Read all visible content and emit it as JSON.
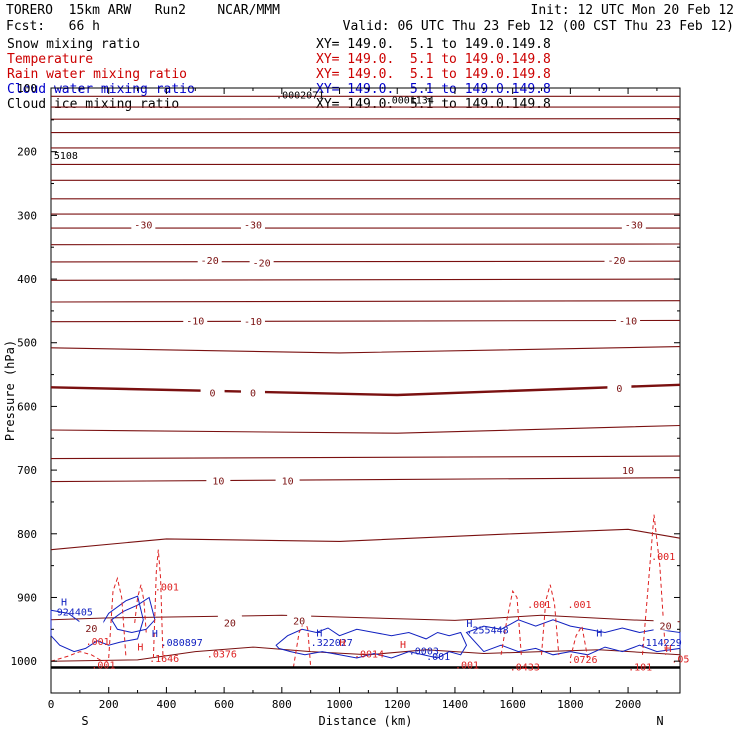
{
  "header": {
    "model": "TORERO  15km ARW   Run2    NCAR/MMM",
    "init": "Init: 12 UTC Mon 20 Feb 12",
    "fcst": "Fcst:   66 h",
    "valid": "Valid: 06 UTC Thu 23 Feb 12 (00 CST Thu 23 Feb 12)"
  },
  "fields": [
    {
      "name": "Snow mixing ratio",
      "xy": "XY= 149.0.  5.1 to 149.0.149.8",
      "color": "#000000"
    },
    {
      "name": "Temperature",
      "xy": "XY= 149.0.  5.1 to 149.0.149.8",
      "color": "#cc0000"
    },
    {
      "name": "Rain water mixing ratio",
      "xy": "XY= 149.0.  5.1 to 149.0.149.8",
      "color": "#cc0000"
    },
    {
      "name": "Cloud water mixing ratio",
      "xy": "XY= 149.0.  5.1 to 149.0.149.8",
      "color": "#0000cc"
    },
    {
      "name": "Cloud ice mixing ratio",
      "xy": "XY= 149.0.  5.1 to 149.0.149.8",
      "color": "#000000"
    }
  ],
  "colors": {
    "temperature": "#7a1010",
    "rain": "#dd2020",
    "cloud_water": "#1020c0",
    "ground": "#000000"
  },
  "chart_data": {
    "type": "line",
    "xlabel": "Distance (km)",
    "ylabel": "Pressure (hPa)",
    "xlim": [
      0,
      2180
    ],
    "ylim": [
      1050,
      100
    ],
    "x_ticks": [
      0,
      200,
      400,
      600,
      800,
      1000,
      1200,
      1400,
      1600,
      1800,
      2000
    ],
    "y_ticks": [
      100,
      200,
      300,
      400,
      500,
      600,
      700,
      800,
      900,
      1000
    ],
    "x_tick_labels": [
      "0",
      "200",
      "400",
      "600",
      "800",
      "1000",
      "1200",
      "1400",
      "1600",
      "1800",
      "2000"
    ],
    "y_tick_labels": [
      "100",
      "200",
      "300",
      "400",
      "500",
      "600",
      "700",
      "800",
      "900",
      "1000"
    ],
    "endpoints": {
      "left": "S",
      "right": "N"
    },
    "ground_pressure": 1010,
    "temperature_isotherms": [
      {
        "x": [
          0,
          2180
        ],
        "p": [
          113,
          113
        ]
      },
      {
        "x": [
          0,
          2180
        ],
        "p": [
          130,
          130
        ]
      },
      {
        "x": [
          0,
          2180
        ],
        "p": [
          149,
          148
        ]
      },
      {
        "x": [
          0,
          2180
        ],
        "p": [
          170,
          170
        ]
      },
      {
        "x": [
          0,
          2180
        ],
        "p": [
          194,
          194
        ]
      },
      {
        "x": [
          0,
          2180
        ],
        "p": [
          220,
          220
        ]
      },
      {
        "x": [
          0,
          2180
        ],
        "p": [
          245,
          245
        ]
      },
      {
        "x": [
          0,
          2180
        ],
        "p": [
          274,
          274
        ]
      },
      {
        "x": [
          0,
          2180
        ],
        "p": [
          298,
          298
        ]
      },
      {
        "x": [
          0,
          2180
        ],
        "p": [
          320,
          320
        ]
      },
      {
        "x": [
          0,
          2180
        ],
        "p": [
          346,
          345
        ]
      },
      {
        "x": [
          0,
          2180
        ],
        "p": [
          373,
          372
        ]
      },
      {
        "x": [
          0,
          2180
        ],
        "p": [
          402,
          400
        ]
      },
      {
        "x": [
          0,
          2180
        ],
        "p": [
          436,
          434
        ]
      },
      {
        "x": [
          0,
          2180
        ],
        "p": [
          467,
          465
        ]
      },
      {
        "x": [
          0,
          1000,
          2180
        ],
        "p": [
          508,
          516,
          506
        ]
      },
      {
        "x": [
          0,
          1200,
          2180
        ],
        "p": [
          570,
          582,
          566
        ]
      },
      {
        "x": [
          0,
          1200,
          2180
        ],
        "p": [
          637,
          642,
          630
        ]
      },
      {
        "x": [
          0,
          2180
        ],
        "p": [
          682,
          678
        ]
      },
      {
        "x": [
          0,
          2180
        ],
        "p": [
          718,
          712
        ]
      },
      {
        "x": [
          0,
          400,
          1000,
          1600,
          2000,
          2180
        ],
        "p": [
          825,
          808,
          812,
          800,
          793,
          807
        ]
      }
    ],
    "isotherm_labels": [
      {
        "x": 320,
        "p": 314,
        "text": "-30"
      },
      {
        "x": 700,
        "p": 314,
        "text": "-30"
      },
      {
        "x": 2020,
        "p": 314,
        "text": "-30"
      },
      {
        "x": 550,
        "p": 370,
        "text": "-20"
      },
      {
        "x": 730,
        "p": 374,
        "text": "-20"
      },
      {
        "x": 1960,
        "p": 370,
        "text": "-20"
      },
      {
        "x": 500,
        "p": 465,
        "text": "-10"
      },
      {
        "x": 700,
        "p": 466,
        "text": "-10"
      },
      {
        "x": 2000,
        "p": 465,
        "text": "-10"
      },
      {
        "x": 560,
        "p": 578,
        "text": "0"
      },
      {
        "x": 700,
        "p": 578,
        "text": "0"
      },
      {
        "x": 1970,
        "p": 571,
        "text": "0"
      },
      {
        "x": 580,
        "p": 716,
        "text": "10"
      },
      {
        "x": 820,
        "p": 716,
        "text": "10"
      },
      {
        "x": 2000,
        "p": 700,
        "text": "10"
      },
      {
        "x": 620,
        "p": 939,
        "text": "20"
      },
      {
        "x": 860,
        "p": 936,
        "text": "20"
      },
      {
        "x": 140,
        "p": 948,
        "text": "20"
      },
      {
        "x": 2130,
        "p": 944,
        "text": "20"
      }
    ],
    "numeric_labels": [
      {
        "x": 780,
        "p": 110,
        "text": ".0002071",
        "color": "#000000"
      },
      {
        "x": 1160,
        "p": 118,
        "text": ".0001134",
        "color": "#000000"
      },
      {
        "x": 10,
        "p": 205,
        "text": "5108",
        "color": "#000000"
      },
      {
        "x": 20,
        "p": 922,
        "text": "924405",
        "color": "#1020c0"
      },
      {
        "x": 380,
        "p": 970,
        "text": ".080897",
        "color": "#1020c0"
      },
      {
        "x": 900,
        "p": 970,
        "text": ".322027",
        "color": "#1020c0"
      },
      {
        "x": 1440,
        "p": 950,
        "text": ".255448",
        "color": "#1020c0"
      },
      {
        "x": 2040,
        "p": 970,
        "text": ".114229",
        "color": "#1020c0"
      },
      {
        "x": 1240,
        "p": 983,
        "text": ".0003",
        "color": "#1020c0"
      },
      {
        "x": 1300,
        "p": 992,
        "text": ".001",
        "color": "#1020c0"
      },
      {
        "x": 360,
        "p": 883,
        "text": ".001",
        "color": "#dd2020"
      },
      {
        "x": 1650,
        "p": 910,
        "text": ".001",
        "color": "#dd2020"
      },
      {
        "x": 1790,
        "p": 910,
        "text": ".001",
        "color": "#dd2020"
      },
      {
        "x": 2080,
        "p": 835,
        "text": ".001",
        "color": "#dd2020"
      },
      {
        "x": 120,
        "p": 968,
        "text": ".001",
        "color": "#dd2020"
      },
      {
        "x": 140,
        "p": 1005,
        "text": ".001",
        "color": "#dd2020"
      },
      {
        "x": 340,
        "p": 995,
        "text": ".1646",
        "color": "#dd2020"
      },
      {
        "x": 540,
        "p": 988,
        "text": ".0376",
        "color": "#dd2020"
      },
      {
        "x": 1050,
        "p": 988,
        "text": ".0014",
        "color": "#dd2020"
      },
      {
        "x": 1400,
        "p": 1005,
        "text": ".001",
        "color": "#dd2020"
      },
      {
        "x": 1590,
        "p": 1008,
        "text": ".0433",
        "color": "#dd2020"
      },
      {
        "x": 1790,
        "p": 997,
        "text": ".0726",
        "color": "#dd2020"
      },
      {
        "x": 2000,
        "p": 1008,
        "text": ".101",
        "color": "#dd2020"
      },
      {
        "x": 2150,
        "p": 996,
        "text": ".05",
        "color": "#dd2020"
      }
    ],
    "h_markers": [
      {
        "x": 45,
        "p": 906,
        "color": "#1020c0"
      },
      {
        "x": 360,
        "p": 956,
        "color": "#1020c0"
      },
      {
        "x": 930,
        "p": 955,
        "color": "#1020c0"
      },
      {
        "x": 1450,
        "p": 940,
        "color": "#1020c0"
      },
      {
        "x": 1900,
        "p": 955,
        "color": "#1020c0"
      },
      {
        "x": 310,
        "p": 977,
        "color": "#dd2020"
      },
      {
        "x": 1010,
        "p": 970,
        "color": "#dd2020"
      },
      {
        "x": 1220,
        "p": 973,
        "color": "#dd2020"
      },
      {
        "x": 2140,
        "p": 979,
        "color": "#dd2020"
      }
    ],
    "cloud_water_contours": [
      {
        "x": [
          0,
          60,
          120,
          160,
          200,
          260,
          300,
          320,
          300,
          240,
          200,
          160,
          120,
          80,
          30,
          0
        ],
        "p": [
          920,
          925,
          945,
          955,
          925,
          905,
          898,
          935,
          965,
          970,
          975,
          968,
          980,
          985,
          975,
          960
        ]
      },
      {
        "x": [
          210,
          250,
          300,
          340,
          360,
          330,
          280,
          230,
          210
        ],
        "p": [
          935,
          922,
          912,
          900,
          935,
          950,
          955,
          950,
          935
        ]
      },
      {
        "x": [
          780,
          820,
          870,
          920,
          960,
          1000,
          1060,
          1120,
          1180,
          1240,
          1300,
          1340,
          1380,
          1420,
          1440,
          1420,
          1380,
          1340,
          1290,
          1240,
          1180,
          1120,
          1060,
          1000,
          940,
          880,
          830,
          790,
          780
        ],
        "p": [
          975,
          960,
          950,
          955,
          948,
          960,
          950,
          955,
          960,
          955,
          965,
          955,
          960,
          955,
          975,
          990,
          985,
          995,
          990,
          985,
          995,
          988,
          995,
          990,
          985,
          990,
          985,
          980,
          975
        ]
      },
      {
        "x": [
          1440,
          1500,
          1560,
          1620,
          1680,
          1740,
          1800,
          1860,
          1920,
          1980,
          2040,
          2100,
          2180,
          2180,
          2100,
          2040,
          1980,
          1920,
          1860,
          1800,
          1740,
          1680,
          1620,
          1560,
          1500,
          1440
        ],
        "p": [
          955,
          945,
          950,
          935,
          945,
          935,
          945,
          950,
          955,
          948,
          955,
          950,
          955,
          980,
          985,
          975,
          985,
          978,
          990,
          985,
          990,
          980,
          985,
          975,
          985,
          955
        ]
      }
    ],
    "rain_contours": [
      {
        "x": [
          200,
          215,
          230,
          245,
          260
        ],
        "p": [
          995,
          890,
          870,
          900,
          995
        ]
      },
      {
        "x": [
          355,
          365,
          372,
          380,
          388
        ],
        "p": [
          995,
          860,
          825,
          870,
          995
        ]
      },
      {
        "x": [
          290,
          300,
          312,
          322,
          330
        ],
        "p": [
          940,
          900,
          880,
          905,
          955
        ]
      },
      {
        "x": [
          840,
          860,
          880,
          890,
          900
        ],
        "p": [
          1010,
          955,
          935,
          950,
          1010
        ]
      },
      {
        "x": [
          1560,
          1580,
          1600,
          1615,
          1630
        ],
        "p": [
          990,
          935,
          890,
          900,
          990
        ]
      },
      {
        "x": [
          1700,
          1715,
          1730,
          1745,
          1760
        ],
        "p": [
          990,
          905,
          880,
          910,
          990
        ]
      },
      {
        "x": [
          2050,
          2070,
          2090,
          2110,
          2130
        ],
        "p": [
          990,
          880,
          770,
          850,
          990
        ]
      },
      {
        "x": [
          0,
          60,
          100,
          140,
          170,
          200
        ],
        "p": [
          1000,
          992,
          985,
          990,
          998,
          1000
        ]
      },
      {
        "x": [
          1800,
          1820,
          1840,
          1860
        ],
        "p": [
          995,
          960,
          945,
          995
        ]
      }
    ],
    "warm_contours": [
      {
        "x": [
          0,
          200,
          500,
          800,
          1100,
          1400,
          1700,
          2000,
          2180
        ],
        "p": [
          935,
          932,
          930,
          928,
          932,
          936,
          928,
          935,
          938
        ]
      },
      {
        "x": [
          0,
          300,
          500,
          700,
          900,
          1100,
          1300,
          1500,
          1700,
          1900,
          2180
        ],
        "p": [
          1000,
          998,
          985,
          978,
          985,
          990,
          982,
          988,
          985,
          982,
          990
        ]
      }
    ]
  }
}
